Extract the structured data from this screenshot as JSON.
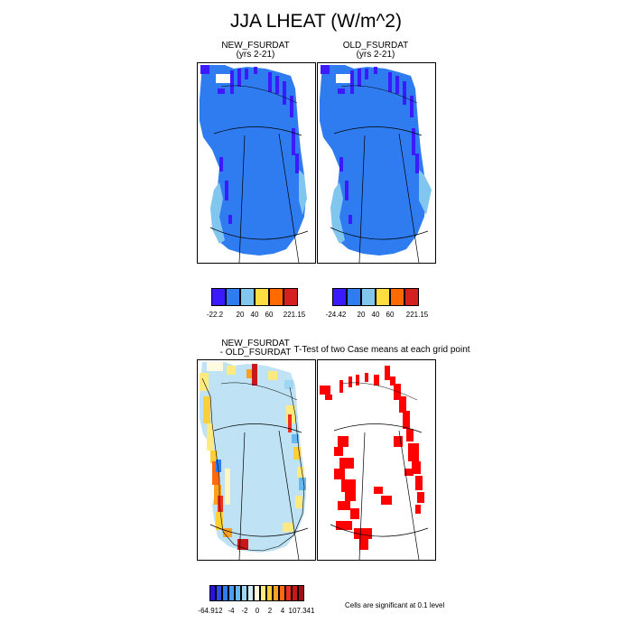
{
  "figure": {
    "title": "JJA LHEAT (W/m^2)"
  },
  "panels": {
    "new": {
      "label": "NEW_FSURDAT",
      "sublabel": "(yrs 2-21)"
    },
    "old": {
      "label": "OLD_FSURDAT",
      "sublabel": "(yrs 2-21)"
    },
    "diff": {
      "label_line1": "NEW_FSURDAT",
      "label_line2": "- OLD_FSURDAT"
    },
    "ttest": {
      "label": "T-Test of two Case means at each grid point"
    }
  },
  "colorbars": {
    "new": {
      "colors": [
        "#3c1aff",
        "#2f7cf0",
        "#80c6ee",
        "#ffdc40",
        "#ff6a00",
        "#d42020"
      ],
      "labels": [
        "-22.2",
        "20",
        "40",
        "60",
        "221.15"
      ]
    },
    "old": {
      "colors": [
        "#3c1aff",
        "#2f7cf0",
        "#80c6ee",
        "#ffdc40",
        "#ff6a00",
        "#d42020"
      ],
      "labels": [
        "-24.42",
        "20",
        "40",
        "60",
        "221.15"
      ]
    },
    "diff": {
      "colors": [
        "#2a12d8",
        "#2a4ee6",
        "#2f7cf0",
        "#4f9df2",
        "#6ab8f0",
        "#9fd6f2",
        "#cfeef8",
        "#fffbe0",
        "#ffea80",
        "#ffcf3a",
        "#ffa020",
        "#ff6a10",
        "#ee3020",
        "#c81818",
        "#a00e18"
      ],
      "labels": [
        "-64.912",
        "-4",
        "-2",
        "0",
        "2",
        "4",
        "107.341"
      ]
    }
  },
  "notes": {
    "significance": "Cells are significant at 0.1 level"
  },
  "colors": {
    "strong_negative": "#3c1aff",
    "moderate": "#2f7cf0",
    "weak": "#80c6ee",
    "significant": "#ff0000"
  }
}
